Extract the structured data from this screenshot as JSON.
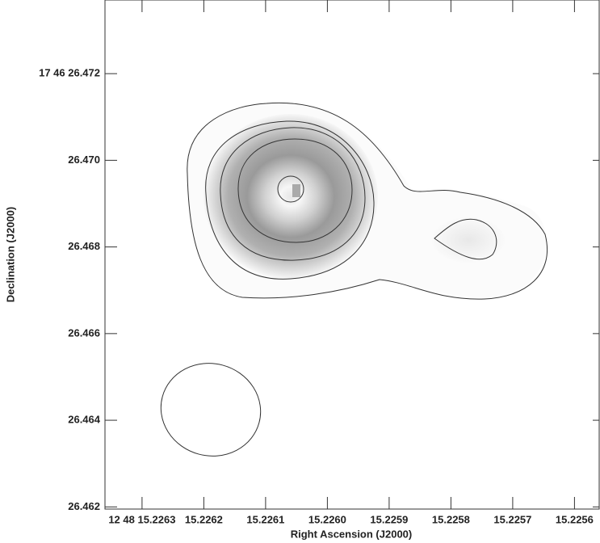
{
  "chart_data": {
    "type": "contour",
    "x_label": "Right Ascension (J2000)",
    "y_label": "Declination (J2000)",
    "xlim": [
      15.22636,
      15.22556
    ],
    "ylim": [
      26.46195,
      26.4737
    ],
    "xticks": [
      {
        "value": 15.2263,
        "label": "12 48 15.2263"
      },
      15.2262,
      15.2261,
      {
        "value": 15.226,
        "label": "15.2260"
      },
      15.2259,
      15.2258,
      15.2257,
      15.2256
    ],
    "yticks": [
      {
        "value": 26.462,
        "label": "26.462"
      },
      26.464,
      26.466,
      26.468,
      {
        "value": 26.47,
        "label": "26.470"
      },
      {
        "value": 26.472,
        "label": "17 46 26.472"
      }
    ]
  }
}
